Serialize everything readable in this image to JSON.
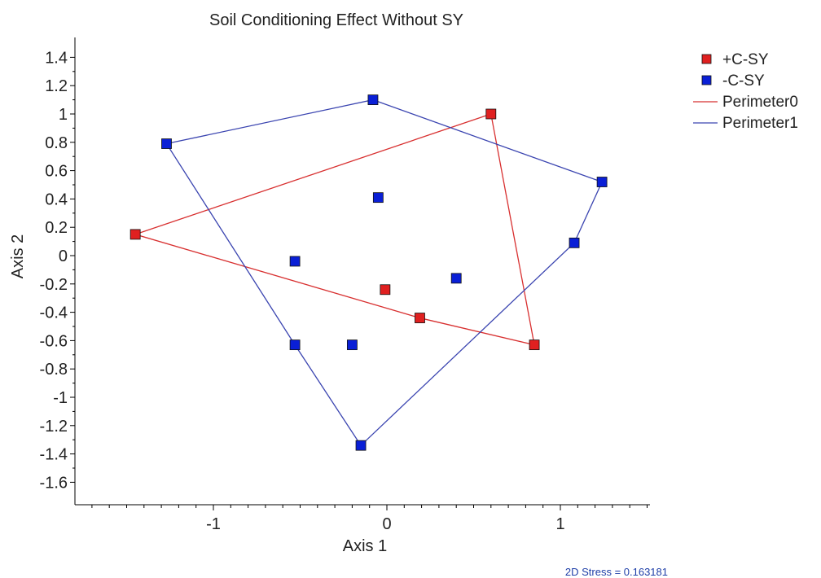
{
  "chart_data": {
    "type": "scatter",
    "title": "Soil Conditioning Effect Without SY",
    "xlabel": "Axis 1",
    "ylabel": "Axis 2",
    "xlim": [
      -1.8,
      1.5
    ],
    "ylim": [
      -1.75,
      1.55
    ],
    "x_ticks": [
      -1,
      0,
      1
    ],
    "x_tick_labels": [
      "-1",
      "0",
      "1"
    ],
    "y_ticks": [
      1.4,
      1.2,
      1,
      0.8,
      0.6,
      0.4,
      0.2,
      0,
      -0.2,
      -0.4,
      -0.6,
      -0.8,
      -1,
      -1.2,
      -1.4,
      -1.6
    ],
    "y_tick_labels": [
      "1.4",
      "1.2",
      "1",
      "0.8",
      "0.6",
      "0.4",
      "0.2",
      "0",
      "-0.2",
      "-0.4",
      "-0.6",
      "-0.8",
      "-1",
      "-1.2",
      "-1.4",
      "-1.6"
    ],
    "grid": false,
    "legend_position": "top-right",
    "series": [
      {
        "name": "+C-SY",
        "marker": "square",
        "color": "#e02020",
        "points": [
          {
            "x": -1.45,
            "y": 0.15
          },
          {
            "x": 0.6,
            "y": 1.0
          },
          {
            "x": 0.85,
            "y": -0.63
          },
          {
            "x": -0.01,
            "y": -0.24
          },
          {
            "x": 0.19,
            "y": -0.44
          }
        ]
      },
      {
        "name": "-C-SY",
        "marker": "square",
        "color": "#0a1fd6",
        "points": [
          {
            "x": -1.27,
            "y": 0.79
          },
          {
            "x": -0.08,
            "y": 1.1
          },
          {
            "x": 1.24,
            "y": 0.52
          },
          {
            "x": 1.08,
            "y": 0.09
          },
          {
            "x": -0.15,
            "y": -1.34
          },
          {
            "x": -0.53,
            "y": -0.63
          },
          {
            "x": -0.2,
            "y": -0.63
          },
          {
            "x": -0.53,
            "y": -0.04
          },
          {
            "x": -0.05,
            "y": 0.41
          },
          {
            "x": 0.4,
            "y": -0.16
          }
        ]
      }
    ],
    "perimeters": [
      {
        "name": "Perimeter0",
        "color": "#d83030",
        "vertices": [
          {
            "x": -1.45,
            "y": 0.15
          },
          {
            "x": 0.6,
            "y": 1.0
          },
          {
            "x": 0.85,
            "y": -0.63
          },
          {
            "x": 0.19,
            "y": -0.44
          }
        ]
      },
      {
        "name": "Perimeter1",
        "color": "#3a44b0",
        "vertices": [
          {
            "x": -1.27,
            "y": 0.79
          },
          {
            "x": -0.08,
            "y": 1.1
          },
          {
            "x": 1.24,
            "y": 0.52
          },
          {
            "x": 1.08,
            "y": 0.09
          },
          {
            "x": -0.15,
            "y": -1.34
          },
          {
            "x": -0.53,
            "y": -0.63
          }
        ]
      }
    ],
    "annotation": "2D Stress = 0.163181"
  }
}
